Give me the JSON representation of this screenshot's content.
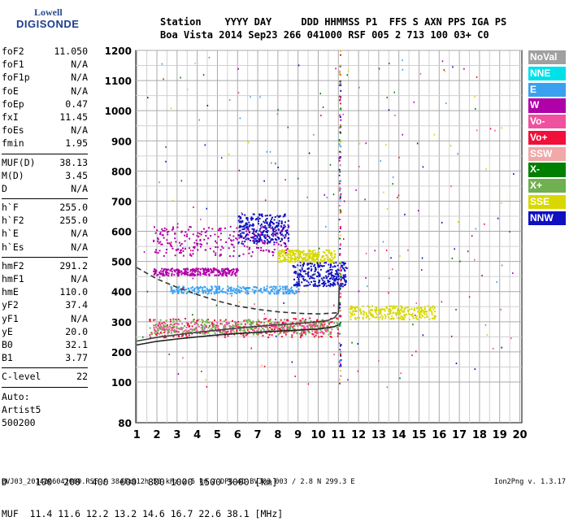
{
  "logo": {
    "line1": "Lowell",
    "line2": "DIGISONDE"
  },
  "header": {
    "line1": "Station    YYYY DAY     DDD HHMMSS P1  FFS S AXN PPS IGA PS",
    "line2": "Boa Vista 2014 Sep23 266 041000 RSF 005 2 713 100 03+ C0"
  },
  "params": {
    "group1": [
      {
        "name": "foF2",
        "value": "11.050"
      },
      {
        "name": "foF1",
        "value": "N/A"
      },
      {
        "name": "foF1p",
        "value": "N/A"
      },
      {
        "name": "foE",
        "value": "N/A"
      },
      {
        "name": "foEp",
        "value": "0.47"
      },
      {
        "name": "fxI",
        "value": "11.45"
      },
      {
        "name": "foEs",
        "value": "N/A"
      },
      {
        "name": "fmin",
        "value": "1.95"
      }
    ],
    "group2": [
      {
        "name": "MUF(D)",
        "value": "38.13"
      },
      {
        "name": "M(D)",
        "value": "3.45"
      },
      {
        "name": "D",
        "value": "N/A"
      }
    ],
    "group3": [
      {
        "name": "h`F",
        "value": "255.0"
      },
      {
        "name": "h`F2",
        "value": "255.0"
      },
      {
        "name": "h`E",
        "value": "N/A"
      },
      {
        "name": "h`Es",
        "value": "N/A"
      }
    ],
    "group4": [
      {
        "name": "hmF2",
        "value": "291.2"
      },
      {
        "name": "hmF1",
        "value": "N/A"
      },
      {
        "name": "hmE",
        "value": "110.0"
      },
      {
        "name": "yF2",
        "value": "37.4"
      },
      {
        "name": "yF1",
        "value": "N/A"
      },
      {
        "name": "yE",
        "value": "20.0"
      },
      {
        "name": "B0",
        "value": "32.1"
      },
      {
        "name": "B1",
        "value": "3.77"
      }
    ],
    "group5": [
      {
        "name": "C-level",
        "value": "22"
      }
    ]
  },
  "autoscale": {
    "line1": "Auto:",
    "line2": "Artist5",
    "line3": "500200"
  },
  "legend": [
    {
      "label": "NoVal",
      "color": "#a0a0a0"
    },
    {
      "label": "NNE",
      "color": "#00e0e8"
    },
    {
      "label": "E",
      "color": "#3aa0f0"
    },
    {
      "label": "W",
      "color": "#b000a8"
    },
    {
      "label": "Vo-",
      "color": "#f050a0"
    },
    {
      "label": "Vo+",
      "color": "#f0103a"
    },
    {
      "label": "SSW",
      "color": "#f0a8a8"
    },
    {
      "label": "X-",
      "color": "#008000"
    },
    {
      "label": "X+",
      "color": "#70b050"
    },
    {
      "label": "SSE",
      "color": "#d8d800"
    },
    {
      "label": "NNW",
      "color": "#1010c0"
    }
  ],
  "footer": {
    "line1": "D     100  200  400  600  800 1000 1500 3000 [km]",
    "line2": "MUF  11.4 11.6 12.2 13.2 14.6 16.7 22.6 38.1 [MHz]",
    "line3": "BVJ03_2014266041000.RSF / 384fx512h 50 kHz 2.5 km / DPS-4D BVJ03 003 / 2.8 N 299.3 E",
    "version": "Ion2Png v. 1.3.17"
  },
  "chart_data": {
    "type": "scatter",
    "title": "",
    "xlabel": "",
    "ylabel": "",
    "x_ticks": [
      1,
      2,
      3,
      4,
      5,
      6,
      7,
      8,
      9,
      10,
      11,
      12,
      13,
      14,
      15,
      16,
      17,
      18,
      19,
      20
    ],
    "y_ticks": [
      80,
      100,
      200,
      300,
      400,
      500,
      600,
      700,
      800,
      900,
      1000,
      1100,
      1200
    ],
    "xlim": [
      0.95,
      20.1
    ],
    "ylim": [
      80,
      1200
    ],
    "y_scale": "piecewise-linear",
    "grid": true,
    "legend_position": "right",
    "foF2_marker_x": 11.05,
    "traces": [
      {
        "name": "Vo+",
        "x_range": [
          1.6,
          11.0
        ],
        "y_range": [
          250,
          315
        ]
      },
      {
        "name": "Vo-",
        "x_range": [
          1.8,
          10.6
        ],
        "y_range": [
          265,
          300
        ]
      },
      {
        "name": "W",
        "x_range": [
          1.8,
          8.5
        ],
        "y_range": [
          520,
          620
        ]
      },
      {
        "name": "W",
        "x_range": [
          1.8,
          6.0
        ],
        "y_range": [
          455,
          480
        ]
      },
      {
        "name": "NNW",
        "x_range": [
          6.0,
          8.5
        ],
        "y_range": [
          560,
          660
        ]
      },
      {
        "name": "NNW",
        "x_range": [
          8.7,
          11.4
        ],
        "y_range": [
          420,
          500
        ]
      },
      {
        "name": "E",
        "x_range": [
          2.6,
          9.0
        ],
        "y_range": [
          395,
          420
        ]
      },
      {
        "name": "SSE",
        "x_range": [
          8.0,
          10.8
        ],
        "y_range": [
          500,
          540
        ]
      },
      {
        "name": "SSE",
        "x_range": [
          11.5,
          15.8
        ],
        "y_range": [
          310,
          355
        ]
      },
      {
        "name": "X+",
        "x_range": [
          1.6,
          11.0
        ],
        "y_range": [
          260,
          310
        ]
      }
    ],
    "profile_curve": {
      "x": [
        1.0,
        2.0,
        3.0,
        4.0,
        5.0,
        6.0,
        7.0,
        8.0,
        9.0,
        10.0,
        10.5,
        10.8,
        11.0
      ],
      "y": [
        223,
        235,
        243,
        250,
        256,
        261,
        265,
        269,
        272,
        276,
        280,
        284,
        290
      ]
    },
    "ordinary_curve": {
      "x": [
        1.0,
        2.0,
        3.0,
        4.0,
        5.0,
        6.0,
        7.0,
        8.0,
        9.0,
        10.0,
        10.5,
        10.8,
        11.0,
        11.05
      ],
      "y": [
        236,
        248,
        257,
        265,
        272,
        279,
        285,
        290,
        294,
        300,
        305,
        313,
        330,
        420
      ]
    },
    "extrapolated_curve": {
      "x": [
        1.0,
        2.0,
        3.0,
        4.0,
        5.0,
        6.0,
        7.0,
        8.0,
        9.0,
        10.0,
        11.0
      ],
      "y": [
        480,
        442,
        414,
        390,
        369,
        352,
        341,
        333,
        328,
        326,
        330
      ]
    }
  }
}
